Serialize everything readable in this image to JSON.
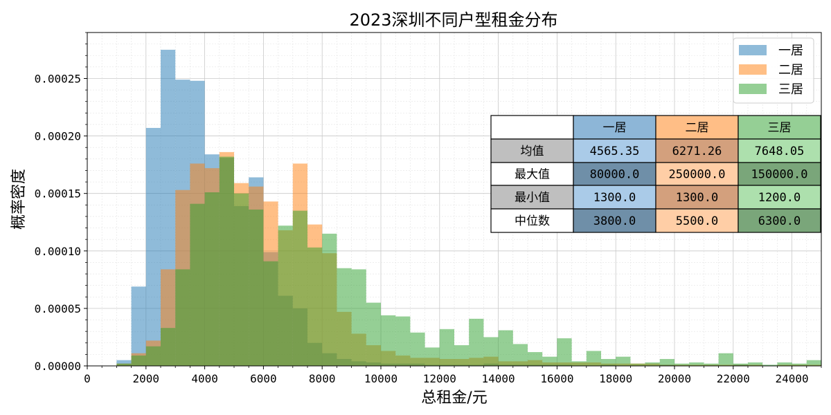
{
  "chart_data": {
    "type": "histogram",
    "title": "2023深圳不同户型租金分布",
    "xlabel": "总租金/元",
    "ylabel": "概率密度",
    "xlim": [
      0,
      25000
    ],
    "ylim": [
      0,
      0.00029
    ],
    "x_ticks": [
      0,
      2000,
      4000,
      6000,
      8000,
      10000,
      12000,
      14000,
      16000,
      18000,
      20000,
      22000,
      24000
    ],
    "y_ticks": [
      0.0,
      5e-05,
      0.0001,
      0.00015,
      0.0002,
      0.00025
    ],
    "y_tick_labels": [
      "0.00000",
      "0.00005",
      "0.00010",
      "0.00015",
      "0.00020",
      "0.00025"
    ],
    "grid": true,
    "legend_position": "top-right",
    "bin_start": 1000,
    "bin_width": 500,
    "series": [
      {
        "name": "一居",
        "color": "#1f77b4",
        "values": [
          5e-06,
          6.9e-05,
          0.000207,
          0.000275,
          0.000249,
          0.000248,
          0.000184,
          0.000181,
          0.000139,
          0.000164,
          9.9e-05,
          6.1e-05,
          5e-05,
          2e-05,
          1.1e-05,
          6e-06,
          4e-06,
          3e-06,
          2e-06,
          2e-06,
          2e-06,
          1e-06,
          1e-06,
          1e-06,
          1e-06,
          2e-06,
          1e-06,
          1e-06,
          1e-06,
          1e-06,
          1e-06,
          0.0,
          0.0,
          1e-06,
          0.0,
          0.0,
          0.0,
          1e-06,
          0.0,
          0.0,
          0.0,
          0.0,
          1e-06,
          0.0,
          0.0,
          0.0,
          0.0,
          0.0
        ]
      },
      {
        "name": "二居",
        "color": "#ff7f0e",
        "values": [
          2e-06,
          1.1e-05,
          2.2e-05,
          8.4e-05,
          0.000153,
          0.000176,
          0.000172,
          0.000186,
          0.000159,
          0.000156,
          0.000143,
          0.000118,
          0.000176,
          0.000123,
          9.8e-05,
          4.7e-05,
          2.8e-05,
          1.8e-05,
          1.3e-05,
          9e-06,
          7e-06,
          7e-06,
          6e-06,
          6e-06,
          7e-06,
          8e-06,
          4e-06,
          4e-06,
          5e-06,
          3e-06,
          3e-06,
          3e-06,
          3e-06,
          2e-06,
          2e-06,
          2e-06,
          2e-06,
          1e-06,
          1e-06,
          1e-06,
          1e-06,
          1e-06,
          1e-06,
          1e-06,
          0.0,
          1e-06,
          1e-06,
          1e-06
        ]
      },
      {
        "name": "三居",
        "color": "#2ca02c",
        "values": [
          2e-06,
          9e-06,
          1.7e-05,
          3.3e-05,
          8.4e-05,
          0.000141,
          0.000151,
          0.000182,
          0.00015,
          0.000136,
          9.1e-05,
          0.000122,
          0.000135,
          0.000103,
          0.000115,
          8.5e-05,
          8.4e-05,
          5.5e-05,
          4.4e-05,
          4.3e-05,
          2.9e-05,
          1.6e-05,
          3.2e-05,
          1.8e-05,
          4.1e-05,
          2.5e-05,
          3.1e-05,
          1.9e-05,
          1.2e-05,
          8e-06,
          2.4e-05,
          4e-06,
          1.3e-05,
          6e-06,
          8e-06,
          2e-06,
          3e-06,
          6e-06,
          2e-06,
          3e-06,
          2e-06,
          1.1e-05,
          2e-06,
          3e-06,
          1e-06,
          3e-06,
          2e-06,
          5e-06,
          1e-06,
          7e-06
        ]
      }
    ],
    "table": {
      "col_headers": [
        "一居",
        "二居",
        "三居"
      ],
      "rows": [
        {
          "label": "均值",
          "values": [
            "4565.35",
            "6271.26",
            "7648.05"
          ]
        },
        {
          "label": "最大值",
          "values": [
            "80000.0",
            "250000.0",
            "150000.0"
          ]
        },
        {
          "label": "最小值",
          "values": [
            "1300.0",
            "1300.0",
            "1200.0"
          ]
        },
        {
          "label": "中位数",
          "values": [
            "3800.0",
            "5500.0",
            "6300.0"
          ]
        }
      ],
      "header_colors": [
        "#8db6d7",
        "#ffbe86",
        "#95cf95"
      ],
      "label_cell_colors": [
        "#ffffff",
        "#bfbfbf",
        "#ffffff",
        "#bfbfbf",
        "#ffffff"
      ],
      "value_cell_colors": [
        [
          "#aacbe8",
          "#d3a07d",
          "#ade0ad"
        ],
        [
          "#6f8fa8",
          "#ffcea6",
          "#7aa67a"
        ],
        [
          "#aacbe8",
          "#d3a07d",
          "#ade0ad"
        ],
        [
          "#6f8fa8",
          "#ffcea6",
          "#7aa67a"
        ]
      ]
    }
  }
}
